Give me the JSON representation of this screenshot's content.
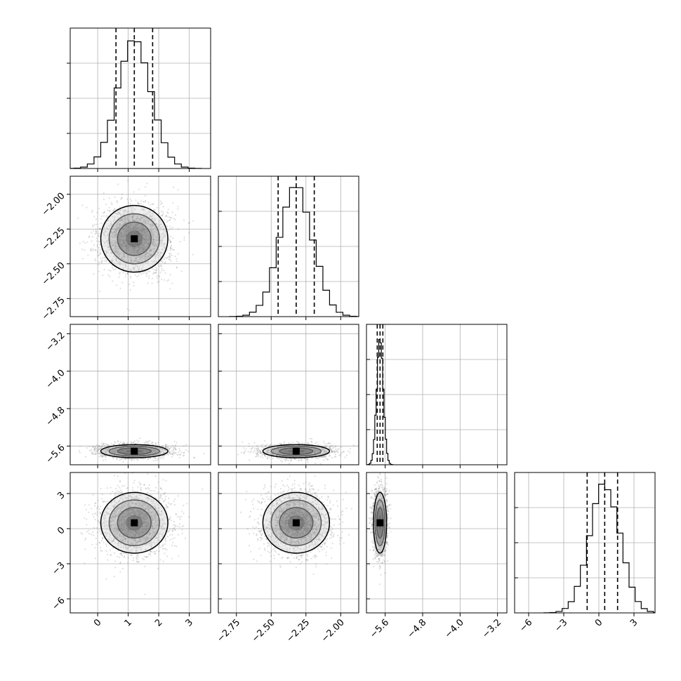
{
  "chart_data": {
    "type": "corner",
    "title": "",
    "parameters": [
      {
        "name": "",
        "range": [
          -0.9,
          3.7
        ],
        "ticks": [
          0,
          1,
          2,
          3
        ],
        "tick_labels": [
          "0",
          "1",
          "2",
          "3"
        ],
        "quantiles": [
          0.6,
          1.2,
          1.8
        ],
        "mean": 1.2,
        "sd": 0.55,
        "hist_ylim": [
          0,
          0.25
        ]
      },
      {
        "name": "",
        "range": [
          -2.88,
          -1.87
        ],
        "ticks": [
          -2.75,
          -2.5,
          -2.25,
          -2.0
        ],
        "tick_labels": [
          "-2.75",
          "-2.50",
          "-2.25",
          "-2.00"
        ],
        "quantiles": [
          -2.45,
          -2.32,
          -2.19
        ],
        "mean": -2.32,
        "sd": 0.12,
        "hist_ylim": [
          0,
          0.25
        ]
      },
      {
        "name": "",
        "range": [
          -6.0,
          -3.0
        ],
        "ticks": [
          -5.6,
          -4.8,
          -4.0,
          -3.2
        ],
        "tick_labels": [
          "-5.6",
          "-4.8",
          "-4.0",
          "-3.2"
        ],
        "quantiles": [
          -5.77,
          -5.71,
          -5.65
        ],
        "mean": -5.71,
        "sd": 0.07,
        "hist_ylim": [
          0,
          1.0
        ]
      },
      {
        "name": "",
        "range": [
          -7.2,
          4.8
        ],
        "ticks": [
          -6,
          -3,
          0,
          3
        ],
        "tick_labels": [
          "-6",
          "-3",
          "0",
          "3"
        ],
        "quantiles": [
          -1.0,
          0.5,
          1.6
        ],
        "mean": 0.5,
        "sd": 1.3,
        "hist_ylim": [
          0,
          0.4
        ]
      }
    ],
    "grid": true,
    "contour_levels": [
      0.118,
      0.393,
      0.675,
      0.864
    ],
    "sample_count": 2000,
    "colors": {
      "samples": "#7f7f7f",
      "lines": "#000000",
      "grid": "#b0b0b0",
      "density": "#000000"
    }
  }
}
